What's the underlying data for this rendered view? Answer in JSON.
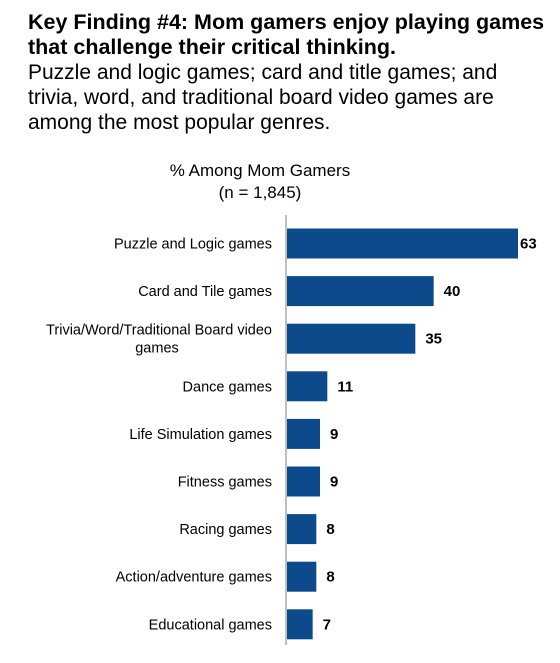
{
  "heading": {
    "bold": "Key Finding #4: Mom gamers enjoy playing games that challenge their critical thinking.",
    "body": "Puzzle and logic games; card and title games; and trivia, word, and traditional board video games are among the most popular genres."
  },
  "colors": {
    "bar": "#0D4A8C"
  },
  "chart_data": {
    "type": "bar",
    "orientation": "horizontal",
    "title": "% Among Mom Gamers",
    "subtitle": "(n = 1,845)",
    "categories": [
      "Puzzle and Logic games",
      "Card and Tile games",
      "Trivia/Word/Traditional Board video games",
      "Dance games",
      "Life Simulation games",
      "Fitness games",
      "Racing games",
      "Action/adventure games",
      "Educational games"
    ],
    "values": [
      63,
      40,
      35,
      11,
      9,
      9,
      8,
      8,
      7
    ],
    "xlim": [
      0,
      63
    ],
    "grid": false,
    "data_labels": true
  }
}
